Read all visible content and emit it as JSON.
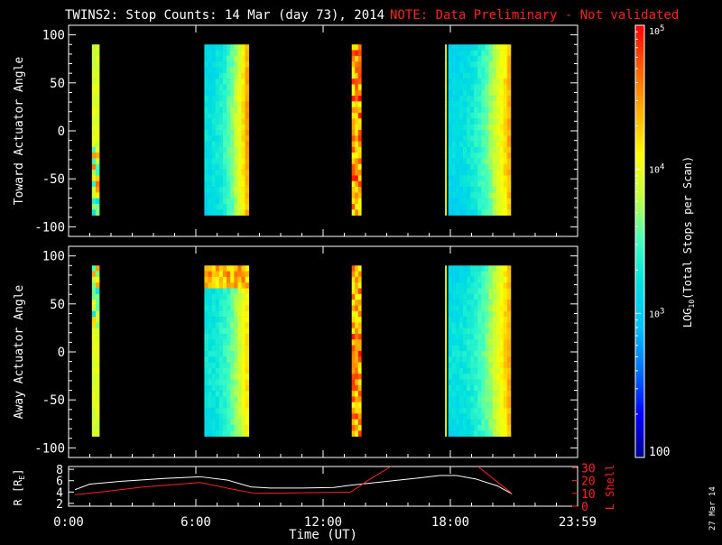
{
  "header": {
    "title": "TWINS2: Stop Counts: 14 Mar (day  73), 2014",
    "note": "NOTE: Data Preliminary - Not validated",
    "title_color": "#ffffff",
    "note_color": "#ff2020"
  },
  "side_date": "27 Mar 14",
  "x_axis": {
    "label": "Time (UT)",
    "range_hours": [
      0,
      24
    ],
    "tick_labels": [
      "0:00",
      "6:00",
      "12:00",
      "18:00",
      "23:59"
    ],
    "tick_hours": [
      0,
      6,
      12,
      18,
      24
    ]
  },
  "colorbar": {
    "label_prefix": "LOG",
    "label_sub": "10",
    "label_suffix": "(Total Stops per Scan)",
    "range": [
      100,
      100000
    ],
    "scale": "log",
    "tick_labels": [
      {
        "base": "10",
        "exp": "5",
        "value": 100000
      },
      {
        "base": "10",
        "exp": "4",
        "value": 10000
      },
      {
        "base": "10",
        "exp": "3",
        "value": 1000
      },
      {
        "text": "100",
        "value": 100
      }
    ],
    "colors": [
      "#000090",
      "#0000ff",
      "#0070ff",
      "#00c0ff",
      "#00e0e0",
      "#40ffc0",
      "#c0ff40",
      "#ffff00",
      "#ffb000",
      "#ff6000",
      "#ff0000"
    ]
  },
  "chart_data": [
    {
      "type": "heatmap",
      "title": "",
      "ylabel": "Toward Actuator Angle",
      "ylim": [
        -110,
        110
      ],
      "y_ticks": [
        100,
        50,
        0,
        -50,
        -100
      ],
      "angle_range": [
        -88,
        90
      ],
      "color_scale": "log10 stops per scan",
      "segments": [
        {
          "start_h": 1.1,
          "end_h": 1.45,
          "level": 3.85,
          "noisy": "lower"
        },
        {
          "start_h": 6.4,
          "end_h": 8.5,
          "level": 3.1,
          "ramp_end": 4.35
        },
        {
          "start_h": 13.35,
          "end_h": 13.8,
          "level": 4.4,
          "noisy": "all"
        },
        {
          "start_h": 17.75,
          "end_h": 17.82,
          "level": 3.9
        },
        {
          "start_h": 17.9,
          "end_h": 20.85,
          "level": 3.05,
          "ramp_end": 4.3
        }
      ]
    },
    {
      "type": "heatmap",
      "title": "",
      "ylabel": "Away Actuator Angle",
      "ylim": [
        -110,
        110
      ],
      "y_ticks": [
        100,
        50,
        0,
        -50,
        -100
      ],
      "angle_range": [
        -88,
        90
      ],
      "color_scale": "log10 stops per scan",
      "segments": [
        {
          "start_h": 1.1,
          "end_h": 1.45,
          "level": 3.85,
          "noisy": "upper"
        },
        {
          "start_h": 6.4,
          "end_h": 8.5,
          "level": 3.15,
          "ramp_end": 4.1,
          "hot_top": true
        },
        {
          "start_h": 13.35,
          "end_h": 13.8,
          "level": 4.4,
          "noisy": "all"
        },
        {
          "start_h": 17.75,
          "end_h": 17.82,
          "level": 3.9
        },
        {
          "start_h": 17.9,
          "end_h": 20.85,
          "level": 3.1,
          "ramp_end": 4.3
        }
      ]
    },
    {
      "type": "line",
      "title": "",
      "ylabel_left": "R [R",
      "ylabel_left_sub": "E",
      "ylabel_left_suffix": "]",
      "ylabel_right": "L Shell",
      "ylim_left": [
        1.5,
        8.5
      ],
      "ylim_right": [
        0,
        31
      ],
      "y_ticks_left": [
        8,
        6,
        4,
        2
      ],
      "y_ticks_right": [
        30,
        20,
        10,
        0
      ],
      "series": [
        {
          "axis": "left",
          "color": "#ffffff",
          "x": [
            0.3,
            1.0,
            2.5,
            4.5,
            6.2,
            7.5,
            8.6,
            9.5,
            11.0,
            12.5,
            13.3,
            14.8,
            16.3,
            17.5,
            18.3,
            19.2,
            20.2,
            20.9
          ],
          "y": [
            4.4,
            5.4,
            5.9,
            6.4,
            6.7,
            6.1,
            4.9,
            4.7,
            4.7,
            4.8,
            5.2,
            5.8,
            6.4,
            6.9,
            6.9,
            6.3,
            5.1,
            3.7
          ]
        },
        {
          "axis": "right",
          "color": "#ff2020",
          "segments": [
            {
              "x": [
                0.3,
                1.5,
                3.5,
                6.2,
                7.8,
                8.8,
                11.0,
                13.3,
                14.2,
                15.2
              ],
              "y": [
                9,
                11,
                15,
                18.5,
                13,
                10,
                10.5,
                11,
                21,
                31
              ]
            },
            {
              "x": [
                19.3,
                20.9
              ],
              "y": [
                31,
                10
              ]
            }
          ]
        }
      ]
    }
  ]
}
